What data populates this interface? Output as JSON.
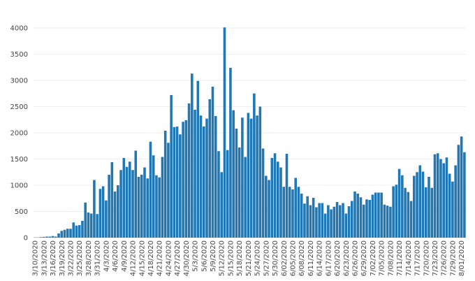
{
  "chart_data": {
    "type": "bar",
    "color": "#1f77b4",
    "grid": true,
    "categories": [
      "3/10/2020",
      null,
      null,
      "3/13/2020",
      null,
      null,
      "3/16/2020",
      null,
      null,
      "3/19/2020",
      null,
      null,
      "3/22/2020",
      null,
      null,
      "3/25/2020",
      null,
      null,
      "3/28/2020",
      null,
      null,
      "3/31/2020",
      null,
      null,
      "4/3/2020",
      null,
      null,
      "4/6/2020",
      null,
      null,
      "4/9/2020",
      null,
      null,
      "4/12/2020",
      null,
      null,
      "4/15/2020",
      null,
      null,
      "4/18/2020",
      null,
      null,
      "4/21/2020",
      null,
      null,
      "4/24/2020",
      null,
      null,
      "4/27/2020",
      null,
      null,
      "4/30/2020",
      null,
      null,
      "5/3/2020",
      null,
      null,
      "5/6/2020",
      null,
      null,
      "5/9/2020",
      null,
      null,
      "5/12/2020",
      null,
      null,
      "5/15/2020",
      null,
      null,
      "5/18/2020",
      null,
      null,
      "5/21/2020",
      null,
      null,
      "5/24/2020",
      null,
      null,
      "5/27/2020",
      null,
      null,
      "5/30/2020",
      null,
      null,
      "6/02/2020",
      null,
      null,
      "6/05/2020",
      null,
      null,
      "6/08/2020",
      null,
      null,
      "6/11/2020",
      null,
      null,
      "6/14/2020",
      null,
      null,
      "6/17/2020",
      null,
      null,
      "6/20/2020",
      null,
      null,
      "6/23/2020",
      null,
      null,
      "6/26/2020",
      null,
      null,
      "6/29/2020",
      null,
      null,
      "7/02/2020",
      null,
      null,
      "7/05/2020",
      null,
      null,
      "7/08/2020",
      null,
      null,
      "7/11/2020",
      null,
      null,
      "7/14/2020",
      null,
      null,
      "7/17/2020",
      null,
      null,
      "7/20/2020",
      null,
      null,
      "7/23/2020",
      null,
      null,
      "7/26/2020",
      null,
      null,
      "7/29/2020",
      null,
      null,
      "8/01/2020",
      null
    ],
    "values": [
      5,
      5,
      10,
      15,
      20,
      20,
      30,
      20,
      80,
      130,
      150,
      170,
      170,
      290,
      230,
      240,
      320,
      670,
      480,
      460,
      1100,
      450,
      930,
      980,
      710,
      1200,
      1440,
      880,
      1000,
      1290,
      1520,
      1350,
      1450,
      1290,
      1660,
      1160,
      1200,
      1340,
      1130,
      1830,
      1570,
      1190,
      1150,
      1540,
      2040,
      1810,
      2720,
      2110,
      2120,
      1970,
      2210,
      2240,
      2560,
      3130,
      2440,
      2990,
      2330,
      2120,
      2270,
      2640,
      2880,
      2320,
      1650,
      1250,
      4010,
      1670,
      3240,
      2430,
      2080,
      1720,
      2290,
      1540,
      2380,
      2270,
      2750,
      2330,
      2500,
      1700,
      1180,
      1100,
      1520,
      1610,
      1450,
      1340,
      970,
      1600,
      970,
      920,
      1140,
      970,
      840,
      650,
      790,
      620,
      760,
      580,
      660,
      660,
      460,
      620,
      540,
      590,
      680,
      620,
      660,
      460,
      600,
      700,
      880,
      840,
      770,
      630,
      730,
      720,
      820,
      860,
      860,
      860,
      630,
      610,
      590,
      980,
      1010,
      1310,
      1190,
      950,
      870,
      700,
      1180,
      1250,
      1380,
      1260,
      960,
      1160,
      950,
      1590,
      1610,
      1500,
      1420,
      1530,
      1220,
      1070,
      1380,
      1770,
      1930,
      1630
    ],
    "ylim": [
      0,
      4000
    ],
    "yticks": [
      0,
      500,
      1000,
      1500,
      2000,
      2500,
      3000,
      3500,
      4000
    ]
  }
}
